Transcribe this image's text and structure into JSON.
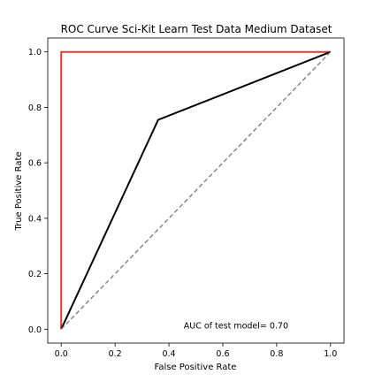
{
  "chart_data": {
    "type": "line",
    "title": "ROC Curve Sci-Kit Learn Test Data Medium Dataset",
    "xlabel": "False Positive Rate",
    "ylabel": "True Positive Rate",
    "xlim": [
      -0.05,
      1.05
    ],
    "ylim": [
      -0.05,
      1.05
    ],
    "xticks": [
      0.0,
      0.2,
      0.4,
      0.6,
      0.8,
      1.0
    ],
    "yticks": [
      0.0,
      0.2,
      0.4,
      0.6,
      0.8,
      1.0
    ],
    "xtick_labels": [
      "0.0",
      "0.2",
      "0.4",
      "0.6",
      "0.8",
      "1.0"
    ],
    "ytick_labels": [
      "0.0",
      "0.2",
      "0.4",
      "0.6",
      "0.8",
      "1.0"
    ],
    "grid": false,
    "series": [
      {
        "x": [
          0.0,
          0.0,
          1.0
        ],
        "y": [
          0.0,
          1.0,
          1.0
        ],
        "color": "#e8372c",
        "style": "solid"
      },
      {
        "x": [
          0.0,
          0.36,
          1.0
        ],
        "y": [
          0.0,
          0.755,
          1.0
        ],
        "color": "#000000",
        "style": "solid"
      },
      {
        "x": [
          0.0,
          1.0
        ],
        "y": [
          0.0,
          1.0
        ],
        "color": "#808080",
        "style": "dashed"
      }
    ],
    "annotations": [
      {
        "text": "AUC of test model= 0.70",
        "x": 0.84,
        "y": 0.0
      }
    ]
  }
}
